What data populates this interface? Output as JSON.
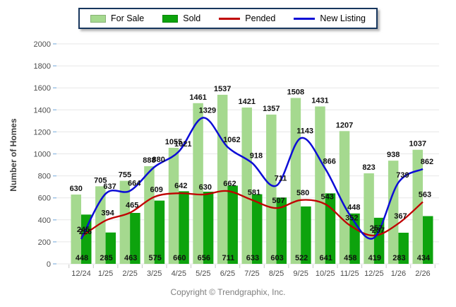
{
  "legend": {
    "items": [
      {
        "label": "For Sale",
        "swatch": "bar"
      },
      {
        "label": "Sold",
        "swatch": "bar"
      },
      {
        "label": "Pended",
        "swatch": "line"
      },
      {
        "label": "New Listing",
        "swatch": "line"
      }
    ]
  },
  "chart_data": {
    "type": "combo-bar-line",
    "categories": [
      "12/24",
      "1/25",
      "2/25",
      "3/25",
      "4/25",
      "5/25",
      "6/25",
      "7/25",
      "8/25",
      "9/25",
      "10/25",
      "11/25",
      "12/25",
      "1/26",
      "2/26"
    ],
    "series": [
      {
        "name": "For Sale",
        "type": "bar",
        "color": "#A5D98F",
        "values": [
          630,
          705,
          755,
          888,
          1055,
          1461,
          1537,
          1421,
          1357,
          1508,
          1431,
          1207,
          823,
          938,
          1037
        ]
      },
      {
        "name": "Sold",
        "type": "bar",
        "color": "#0DA30D",
        "values": [
          448,
          285,
          463,
          575,
          660,
          656,
          711,
          633,
          603,
          522,
          641,
          458,
          419,
          283,
          434
        ]
      },
      {
        "name": "Pended",
        "type": "line",
        "color": "#C00000",
        "values": [
          245,
          394,
          465,
          609,
          642,
          630,
          662,
          581,
          507,
          580,
          543,
          352,
          257,
          367,
          563
        ]
      },
      {
        "name": "New Listing",
        "type": "line",
        "color": "#0D0DD6",
        "values": [
          226,
          637,
          664,
          880,
          1021,
          1329,
          1062,
          918,
          711,
          1143,
          866,
          448,
          237,
          739,
          862
        ]
      }
    ],
    "title": "",
    "xlabel": "",
    "ylabel": "Number of Homes",
    "ylim": [
      0,
      2000
    ],
    "ytick_step": 200,
    "grid": true,
    "legend_position": "top"
  },
  "colors": {
    "grid": "#E7E7E7",
    "axis_tick_x": "#C8C8C8",
    "axis_tick_y": "#9DC3E6",
    "tick_label": "#4D4D4D",
    "data_label": "#111111",
    "legend_border": "#17365D"
  },
  "footer": {
    "copyright": "Copyright © Trendgraphix, Inc."
  }
}
